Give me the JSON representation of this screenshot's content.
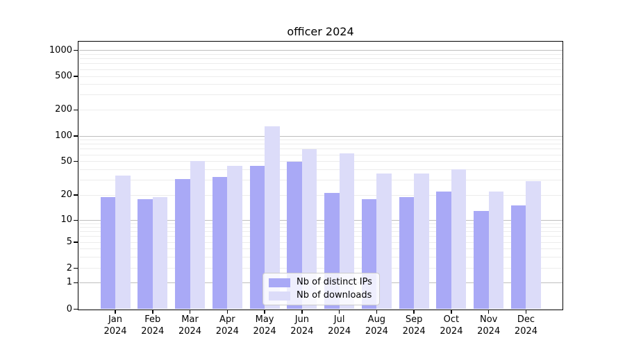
{
  "title": "officer 2024",
  "colors": {
    "distinct_ips_bar": "#a9a9f6",
    "downloads_bar": "#dcdcf9",
    "major_grid": "#bdbdbd",
    "minor_grid": "#ececec",
    "axis": "#000000",
    "legend_border": "#cccccc"
  },
  "chart_data": {
    "type": "bar",
    "title": "officer 2024",
    "xlabel": "",
    "ylabel": "",
    "yscale": "symlog",
    "ylim": [
      0,
      1300
    ],
    "y_ticks": [
      1000,
      500,
      200,
      100,
      50,
      20,
      10,
      5,
      2,
      1,
      0
    ],
    "grid": "horizontal major and minor gridlines",
    "legend_position": "lower center",
    "categories": [
      "Jan 2024",
      "Feb 2024",
      "Mar 2024",
      "Apr 2024",
      "May 2024",
      "Jun 2024",
      "Jul 2024",
      "Aug 2024",
      "Sep 2024",
      "Oct 2024",
      "Nov 2024",
      "Dec 2024"
    ],
    "series": [
      {
        "name": "Nb of distinct IPs",
        "color": "#a9a9f6",
        "values": [
          19,
          18,
          31,
          33,
          44,
          50,
          21,
          18,
          19,
          22,
          13,
          15
        ]
      },
      {
        "name": "Nb of downloads",
        "color": "#dcdcf9",
        "values": [
          34,
          19,
          51,
          44,
          130,
          70,
          62,
          36,
          36,
          40,
          22,
          29
        ]
      }
    ]
  }
}
